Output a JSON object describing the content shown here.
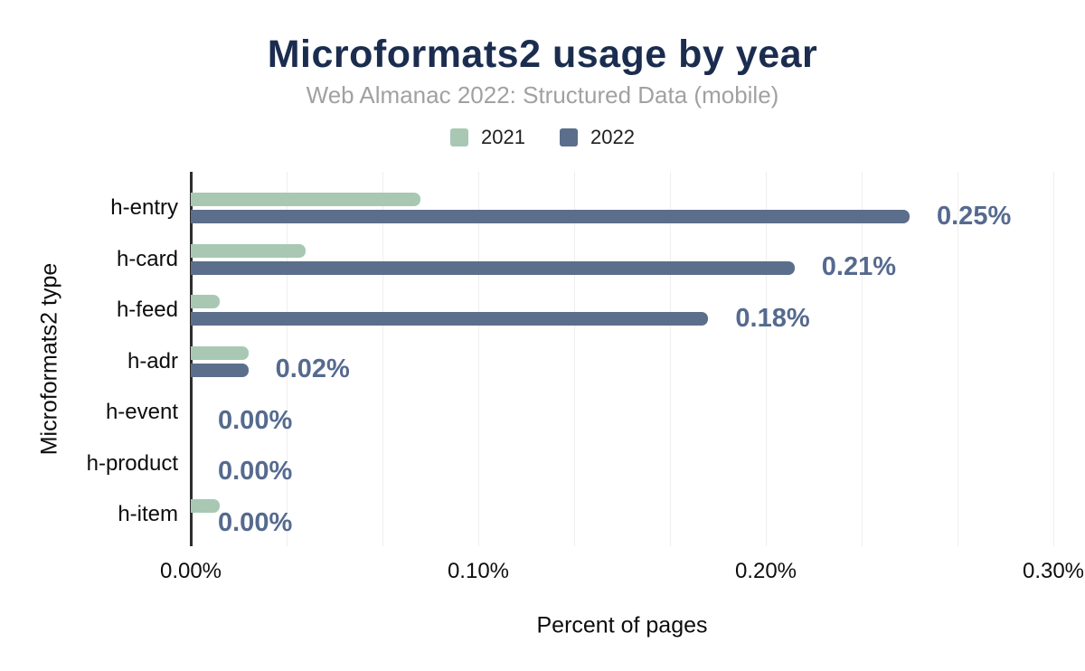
{
  "header": {
    "title": "Microformats2 usage by year",
    "subtitle": "Web Almanac 2022: Structured Data (mobile)"
  },
  "colors": {
    "title": "#1b2d4f",
    "subtitle": "#a1a1a1",
    "series_2021": "#a8c8b4",
    "series_2022": "#5b6e8b",
    "data_label": "#566a8f",
    "axis_line": "#2e2e2e",
    "gridline": "#eeeeee",
    "background": "#ffffff"
  },
  "chart_data": {
    "type": "bar",
    "orientation": "horizontal",
    "title": "Microformats2 usage by year",
    "subtitle": "Web Almanac 2022: Structured Data (mobile)",
    "xlabel": "Percent of pages",
    "ylabel": "Microformats2 type",
    "categories": [
      "h-entry",
      "h-card",
      "h-feed",
      "h-adr",
      "h-event",
      "h-product",
      "h-item"
    ],
    "series": [
      {
        "name": "2021",
        "color": "#a8c8b4",
        "values": [
          0.08,
          0.04,
          0.01,
          0.02,
          0.0,
          0.0,
          0.01
        ]
      },
      {
        "name": "2022",
        "color": "#5b6e8b",
        "values": [
          0.25,
          0.21,
          0.18,
          0.02,
          0.0,
          0.0,
          0.0
        ],
        "data_labels": [
          "0.25%",
          "0.21%",
          "0.18%",
          "0.02%",
          "0.00%",
          "0.00%",
          "0.00%"
        ]
      }
    ],
    "xlim": [
      0,
      0.3
    ],
    "x_ticks": [
      "0.00%",
      "0.10%",
      "0.20%",
      "0.30%"
    ],
    "grid": "vertical, minor gridlines at thirds of each major interval",
    "legend_position": "top"
  }
}
